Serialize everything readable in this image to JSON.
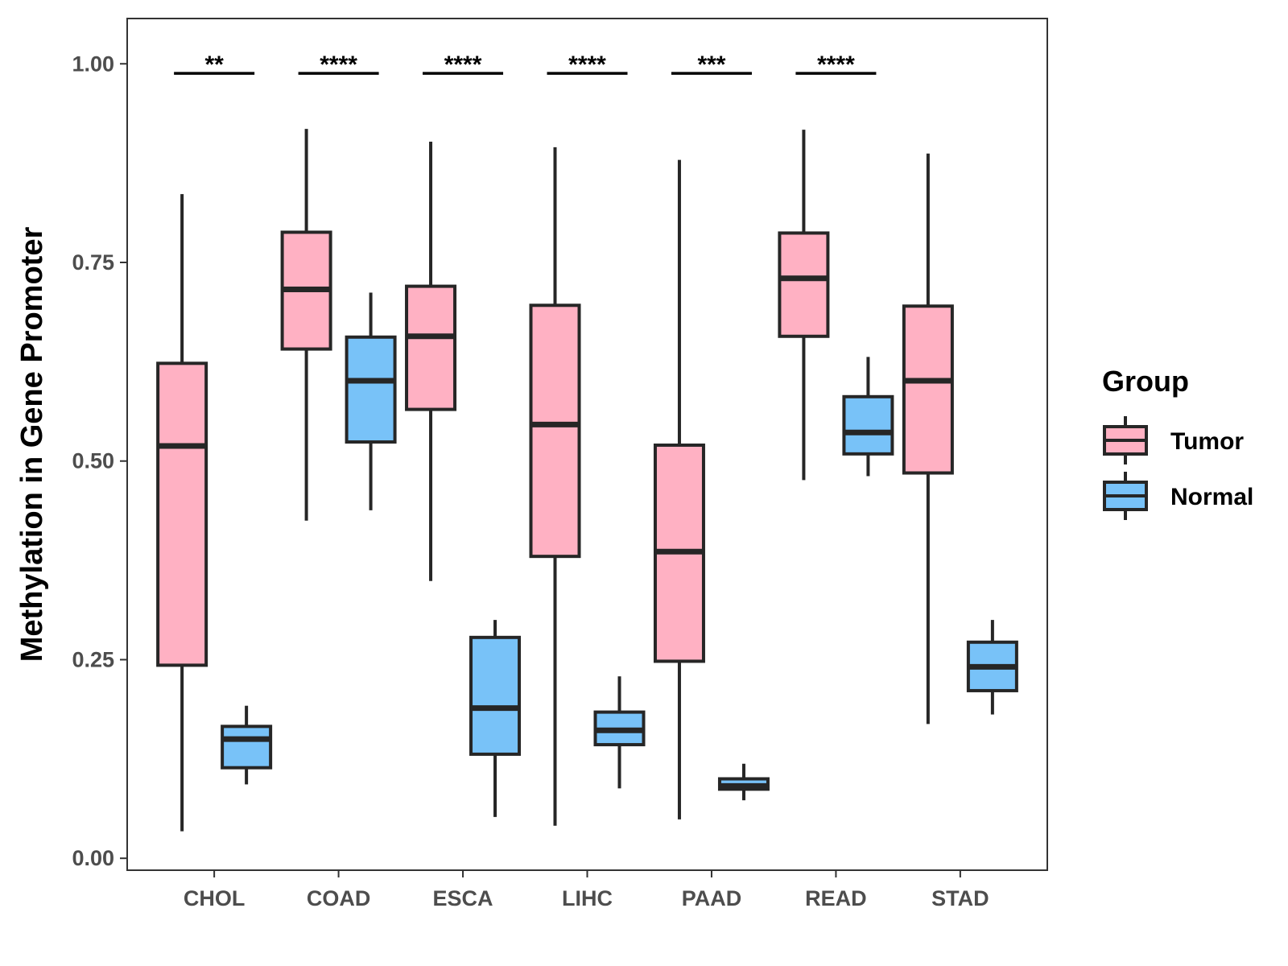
{
  "chart_data": {
    "type": "boxplot",
    "title": "",
    "xlabel": "",
    "ylabel": "Methylation in Gene Promoter",
    "ylim": [
      -0.015,
      1.057
    ],
    "yticks": [
      0,
      0.25,
      0.5,
      0.75,
      1.0
    ],
    "ytick_labels": [
      "0.00",
      "0.25",
      "0.50",
      "0.75",
      "1.00"
    ],
    "categories": [
      "CHOL",
      "COAD",
      "ESCA",
      "LIHC",
      "PAAD",
      "READ",
      "STAD"
    ],
    "legend": {
      "title": "Group",
      "position": "right"
    },
    "series": [
      {
        "name": "Tumor",
        "color": "#FFB1C3",
        "boxes": [
          {
            "category": "CHOL",
            "whisker_low": 0.034,
            "q1": 0.243,
            "median": 0.519,
            "q3": 0.623,
            "whisker_high": 0.836
          },
          {
            "category": "COAD",
            "whisker_low": 0.425,
            "q1": 0.641,
            "median": 0.716,
            "q3": 0.788,
            "whisker_high": 0.918
          },
          {
            "category": "ESCA",
            "whisker_low": 0.349,
            "q1": 0.565,
            "median": 0.657,
            "q3": 0.72,
            "whisker_high": 0.902
          },
          {
            "category": "LIHC",
            "whisker_low": 0.041,
            "q1": 0.38,
            "median": 0.546,
            "q3": 0.696,
            "whisker_high": 0.895
          },
          {
            "category": "PAAD",
            "whisker_low": 0.049,
            "q1": 0.248,
            "median": 0.386,
            "q3": 0.52,
            "whisker_high": 0.879
          },
          {
            "category": "READ",
            "whisker_low": 0.476,
            "q1": 0.657,
            "median": 0.73,
            "q3": 0.787,
            "whisker_high": 0.917
          },
          {
            "category": "STAD",
            "whisker_low": 0.169,
            "q1": 0.485,
            "median": 0.601,
            "q3": 0.695,
            "whisker_high": 0.887
          }
        ]
      },
      {
        "name": "Normal",
        "color": "#78C2F8",
        "boxes": [
          {
            "category": "CHOL",
            "whisker_low": 0.093,
            "q1": 0.114,
            "median": 0.15,
            "q3": 0.166,
            "whisker_high": 0.192
          },
          {
            "category": "COAD",
            "whisker_low": 0.438,
            "q1": 0.524,
            "median": 0.601,
            "q3": 0.656,
            "whisker_high": 0.712
          },
          {
            "category": "ESCA",
            "whisker_low": 0.052,
            "q1": 0.131,
            "median": 0.189,
            "q3": 0.278,
            "whisker_high": 0.3
          },
          {
            "category": "LIHC",
            "whisker_low": 0.088,
            "q1": 0.143,
            "median": 0.161,
            "q3": 0.184,
            "whisker_high": 0.229
          },
          {
            "category": "PAAD",
            "whisker_low": 0.073,
            "q1": 0.087,
            "median": 0.091,
            "q3": 0.1,
            "whisker_high": 0.119
          },
          {
            "category": "READ",
            "whisker_low": 0.481,
            "q1": 0.509,
            "median": 0.536,
            "q3": 0.581,
            "whisker_high": 0.631
          },
          {
            "category": "STAD",
            "whisker_low": 0.181,
            "q1": 0.211,
            "median": 0.241,
            "q3": 0.272,
            "whisker_high": 0.3
          }
        ]
      }
    ],
    "annotations": [
      {
        "category": "CHOL",
        "label": "**",
        "y": 0.988
      },
      {
        "category": "COAD",
        "label": "****",
        "y": 0.988
      },
      {
        "category": "ESCA",
        "label": "****",
        "y": 0.988
      },
      {
        "category": "LIHC",
        "label": "****",
        "y": 0.988
      },
      {
        "category": "PAAD",
        "label": "***",
        "y": 0.988
      },
      {
        "category": "READ",
        "label": "****",
        "y": 0.988
      }
    ]
  }
}
